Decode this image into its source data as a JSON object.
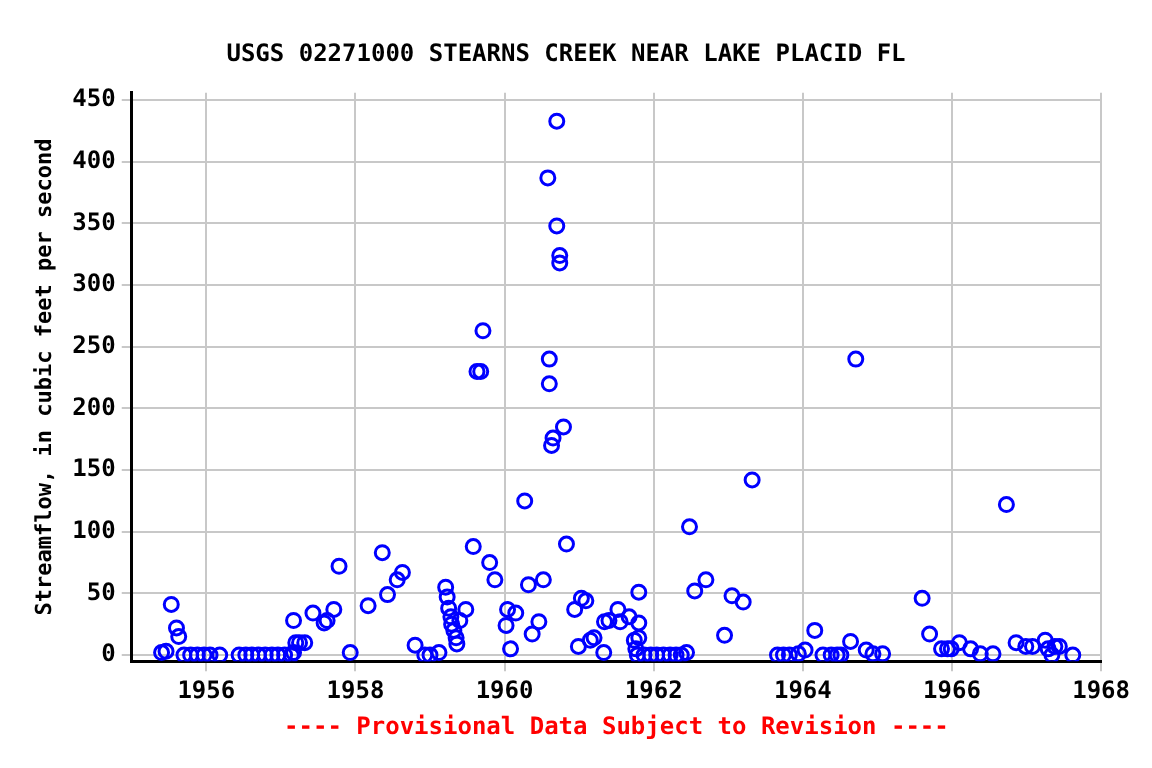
{
  "chart_data": {
    "type": "scatter",
    "title": "USGS 02271000 STEARNS CREEK NEAR LAKE PLACID FL",
    "ylabel": "Streamflow, in cubic feet per second",
    "annotations": [
      "---- Provisional Data Subject to Revision ----"
    ],
    "x": [
      1960.7,
      1960.58,
      1960.7,
      1960.74,
      1960.74,
      1959.71,
      1959.63,
      1959.68,
      1960.6,
      1960.6,
      1960.79,
      1960.65,
      1960.63,
      1960.27,
      1964.71,
      1963.32,
      1962.48,
      1966.73,
      1955.4,
      1955.46,
      1955.53,
      1955.6,
      1955.63,
      1955.7,
      1955.79,
      1955.88,
      1955.97,
      1956.05,
      1956.18,
      1956.44,
      1956.53,
      1956.61,
      1956.7,
      1956.79,
      1956.88,
      1956.96,
      1957.05,
      1957.14,
      1957.17,
      1957.2,
      1957.25,
      1957.32,
      1957.17,
      1957.43,
      1957.58,
      1957.62,
      1957.71,
      1957.78,
      1957.93,
      1958.17,
      1958.36,
      1958.43,
      1958.56,
      1958.63,
      1958.8,
      1958.93,
      1959.0,
      1959.12,
      1959.21,
      1959.23,
      1959.25,
      1959.28,
      1959.29,
      1959.32,
      1959.35,
      1959.36,
      1959.4,
      1959.48,
      1959.58,
      1959.8,
      1959.87,
      1960.04,
      1960.02,
      1960.08,
      1960.15,
      1960.32,
      1960.52,
      1960.83,
      1960.37,
      1960.46,
      1960.94,
      1961.03,
      1961.09,
      1960.99,
      1961.15,
      1961.2,
      1961.33,
      1961.34,
      1961.4,
      1961.52,
      1961.55,
      1961.67,
      1961.8,
      1961.74,
      1961.8,
      1961.8,
      1961.76,
      1961.78,
      1961.87,
      1961.96,
      1962.04,
      1962.13,
      1962.22,
      1962.3,
      1962.37,
      1962.44,
      1962.55,
      1962.7,
      1962.95,
      1963.05,
      1963.2,
      1963.66,
      1963.74,
      1963.82,
      1963.94,
      1964.03,
      1964.16,
      1964.27,
      1964.38,
      1964.46,
      1964.51,
      1964.64,
      1965.6,
      1965.7,
      1965.86,
      1965.94,
      1965.99,
      1966.1,
      1966.25,
      1966.38,
      1966.55,
      1964.85,
      1964.94,
      1965.07,
      1966.86,
      1966.99,
      1967.08,
      1967.25,
      1967.29,
      1967.38,
      1967.34,
      1967.44,
      1967.62
    ],
    "values": [
      433,
      387,
      348,
      324,
      318,
      263,
      230,
      230,
      240,
      220,
      185,
      176,
      170,
      125,
      240,
      142,
      104,
      122,
      2,
      3,
      41,
      22,
      15,
      0,
      0,
      0,
      0,
      0,
      0,
      0,
      0,
      0,
      0,
      0,
      0,
      0,
      0,
      0,
      2,
      10,
      10,
      10,
      28,
      34,
      26,
      28,
      37,
      72,
      2,
      40,
      83,
      49,
      61,
      67,
      8,
      0,
      0,
      2,
      55,
      47,
      38,
      31,
      25,
      20,
      14,
      9,
      28,
      37,
      88,
      75,
      61,
      37,
      24,
      5,
      34,
      57,
      61,
      90,
      17,
      27,
      37,
      46,
      44,
      7,
      12,
      14,
      2,
      27,
      28,
      37,
      27,
      31,
      26,
      12,
      14,
      51,
      5,
      0,
      0,
      0,
      0,
      0,
      0,
      0,
      0,
      2,
      52,
      61,
      16,
      48,
      43,
      0,
      0,
      0,
      1,
      4,
      20,
      0,
      0,
      0,
      0,
      11,
      46,
      17,
      5,
      5,
      5,
      10,
      5,
      1,
      1,
      4,
      1,
      1,
      10,
      7,
      7,
      12,
      5,
      7,
      0,
      7,
      0
    ],
    "color": "#0000ff",
    "marker": "circle",
    "xlim": [
      1955,
      1968
    ],
    "ylim": [
      -5,
      456
    ],
    "xticks": [
      1956,
      1958,
      1960,
      1962,
      1964,
      1966,
      1968
    ],
    "yticks": [
      0,
      50,
      100,
      150,
      200,
      250,
      300,
      350,
      400,
      450
    ],
    "grid": true
  }
}
